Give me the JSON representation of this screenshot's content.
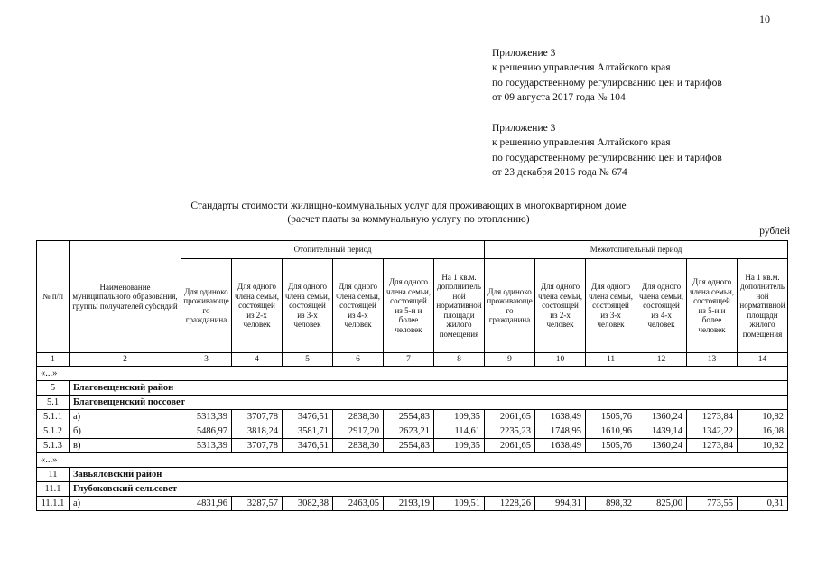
{
  "page": {
    "number": "10"
  },
  "appendix_blocks": [
    {
      "lines": [
        "Приложение 3",
        "к решению управления Алтайского края",
        "по государственному регулированию цен и тарифов",
        "от 09 августа 2017 года № 104"
      ]
    },
    {
      "lines": [
        "Приложение 3",
        "к решению управления Алтайского края",
        "по государственному регулированию цен и тарифов",
        "от 23 декабря 2016 года № 674"
      ]
    }
  ],
  "title": {
    "line1": "Стандарты стоимости жилищно-коммунальных услуг для проживающих в многоквартирном  доме",
    "line2": "(расчет платы за коммунальную услугу по отоплению)"
  },
  "units": "рублей",
  "table": {
    "header": {
      "col_num": "№ п/п",
      "col_name": "Наименование муниципального образования, группы получателей субсидий",
      "group1": "Отопительный период",
      "group2": "Межотопительный период",
      "subcols": [
        "Для одиноко проживающего гражданина",
        "Для одного члена семьи, состоящей из 2-х человек",
        "Для одного члена семьи, состоящей из 3-х человек",
        "Для одного члена семьи, состоящей из 4-х человек",
        "Для одного члена семьи, состоящей из 5-и и более человек",
        "На 1 кв.м. дополнительной нормативной площади жилого помещения"
      ],
      "numbering": [
        "1",
        "2",
        "3",
        "4",
        "5",
        "6",
        "7",
        "8",
        "9",
        "10",
        "11",
        "12",
        "13",
        "14"
      ]
    },
    "rows": [
      {
        "type": "ellipsis",
        "label": "«...»"
      },
      {
        "type": "section",
        "num": "5",
        "name": "Благовещенский район"
      },
      {
        "type": "section",
        "num": "5.1",
        "name": "Благовещенский поссовет"
      },
      {
        "type": "data",
        "num": "5.1.1",
        "name": "а)",
        "values": [
          "5313,39",
          "3707,78",
          "3476,51",
          "2838,30",
          "2554,83",
          "109,35",
          "2061,65",
          "1638,49",
          "1505,76",
          "1360,24",
          "1273,84",
          "10,82"
        ]
      },
      {
        "type": "data",
        "num": "5.1.2",
        "name": "б)",
        "values": [
          "5486,97",
          "3818,24",
          "3581,71",
          "2917,20",
          "2623,21",
          "114,61",
          "2235,23",
          "1748,95",
          "1610,96",
          "1439,14",
          "1342,22",
          "16,08"
        ]
      },
      {
        "type": "data",
        "num": "5.1.3",
        "name": "в)",
        "values": [
          "5313,39",
          "3707,78",
          "3476,51",
          "2838,30",
          "2554,83",
          "109,35",
          "2061,65",
          "1638,49",
          "1505,76",
          "1360,24",
          "1273,84",
          "10,82"
        ]
      },
      {
        "type": "ellipsis",
        "label": "«...»"
      },
      {
        "type": "section",
        "num": "11",
        "name": "Завьяловский район"
      },
      {
        "type": "section",
        "num": "11.1",
        "name": "Глубоковский сельсовет"
      },
      {
        "type": "data",
        "num": "11.1.1",
        "name": "а)",
        "values": [
          "4831,96",
          "3287,57",
          "3082,38",
          "2463,05",
          "2193,19",
          "109,51",
          "1228,26",
          "994,31",
          "898,32",
          "825,00",
          "773,55",
          "0,31"
        ]
      }
    ]
  }
}
